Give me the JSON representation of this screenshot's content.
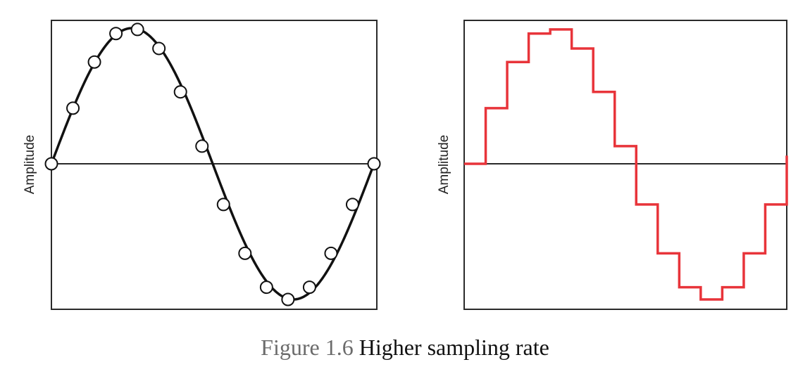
{
  "caption": {
    "number": "Figure 1.6",
    "title": "Higher sampling rate"
  },
  "colors": {
    "axis": "#2a2a2a",
    "curve": "#111111",
    "marker_fill": "#ffffff",
    "step": "#e8343a"
  },
  "chart_data": [
    {
      "type": "scatter",
      "ylabel": "Amplitude",
      "xlabel": "",
      "title": "",
      "grid": false,
      "legend": "none",
      "xlim": [
        0,
        1
      ],
      "ylim": [
        -1.05,
        1.05
      ],
      "curve": "sine",
      "series": [
        {
          "x": [
            0,
            0.0667,
            0.1333,
            0.2,
            0.2667,
            0.3333,
            0.4,
            0.4667,
            0.5333,
            0.6,
            0.6667,
            0.7333,
            0.8,
            0.8667,
            0.9333,
            1.0
          ],
          "values": [
            0,
            0.41,
            0.75,
            0.96,
            0.99,
            0.85,
            0.53,
            0.13,
            -0.3,
            -0.66,
            -0.91,
            -1.0,
            -0.91,
            -0.66,
            -0.3,
            0
          ]
        }
      ]
    },
    {
      "type": "line",
      "step": true,
      "ylabel": "Amplitude",
      "xlabel": "",
      "title": "",
      "grid": false,
      "legend": "none",
      "xlim": [
        0,
        1
      ],
      "ylim": [
        -1.05,
        1.05
      ],
      "series": [
        {
          "x": [
            0,
            0.0667,
            0.1333,
            0.2,
            0.2667,
            0.3333,
            0.4,
            0.4667,
            0.5333,
            0.6,
            0.6667,
            0.7333,
            0.8,
            0.8667,
            0.9333,
            1.0
          ],
          "values": [
            0,
            0.41,
            0.75,
            0.96,
            0.99,
            0.85,
            0.53,
            0.13,
            -0.3,
            -0.66,
            -0.91,
            -1.0,
            -0.91,
            -0.66,
            -0.3,
            0
          ]
        }
      ]
    }
  ]
}
